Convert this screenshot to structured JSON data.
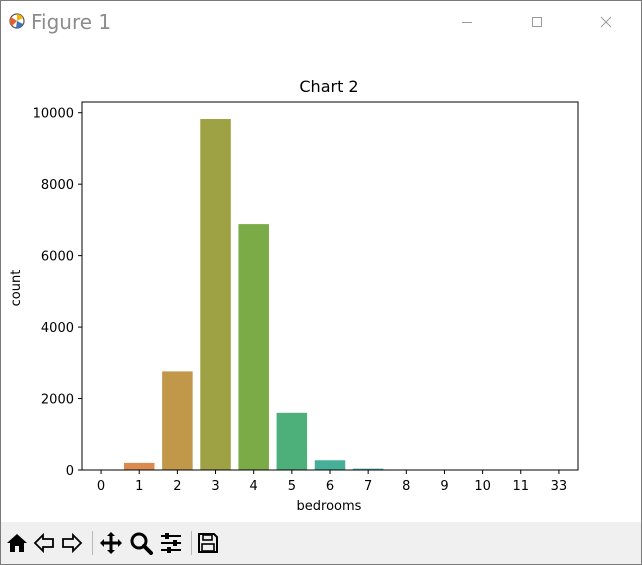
{
  "window": {
    "title": "Figure 1",
    "icons": [
      "matplotlib-icon",
      "minimize-icon",
      "maximize-icon",
      "close-icon"
    ]
  },
  "toolbar": {
    "buttons": [
      "home-icon",
      "back-icon",
      "forward-icon",
      "pan-icon",
      "zoom-icon",
      "configure-subplots-icon",
      "save-icon"
    ]
  },
  "chart_data": {
    "type": "bar",
    "title": "Chart 2",
    "xlabel": "bedrooms",
    "ylabel": "count",
    "categories": [
      "0",
      "1",
      "2",
      "3",
      "4",
      "5",
      "6",
      "7",
      "8",
      "9",
      "10",
      "11",
      "33"
    ],
    "values": [
      13,
      199,
      2760,
      9824,
      6882,
      1601,
      272,
      38,
      13,
      6,
      3,
      1,
      1
    ],
    "ylim": [
      0,
      10300
    ],
    "yticks": [
      0,
      2000,
      4000,
      6000,
      8000,
      10000
    ],
    "grid": false,
    "colors": [
      "#e8715e",
      "#db8a50",
      "#c1984a",
      "#9ea244",
      "#7aab47",
      "#4db07a",
      "#47ae98",
      "#49acac",
      "#4aa8c4",
      "#5b9fd9",
      "#8d93e4",
      "#b986e2",
      "#e36fc5"
    ]
  }
}
